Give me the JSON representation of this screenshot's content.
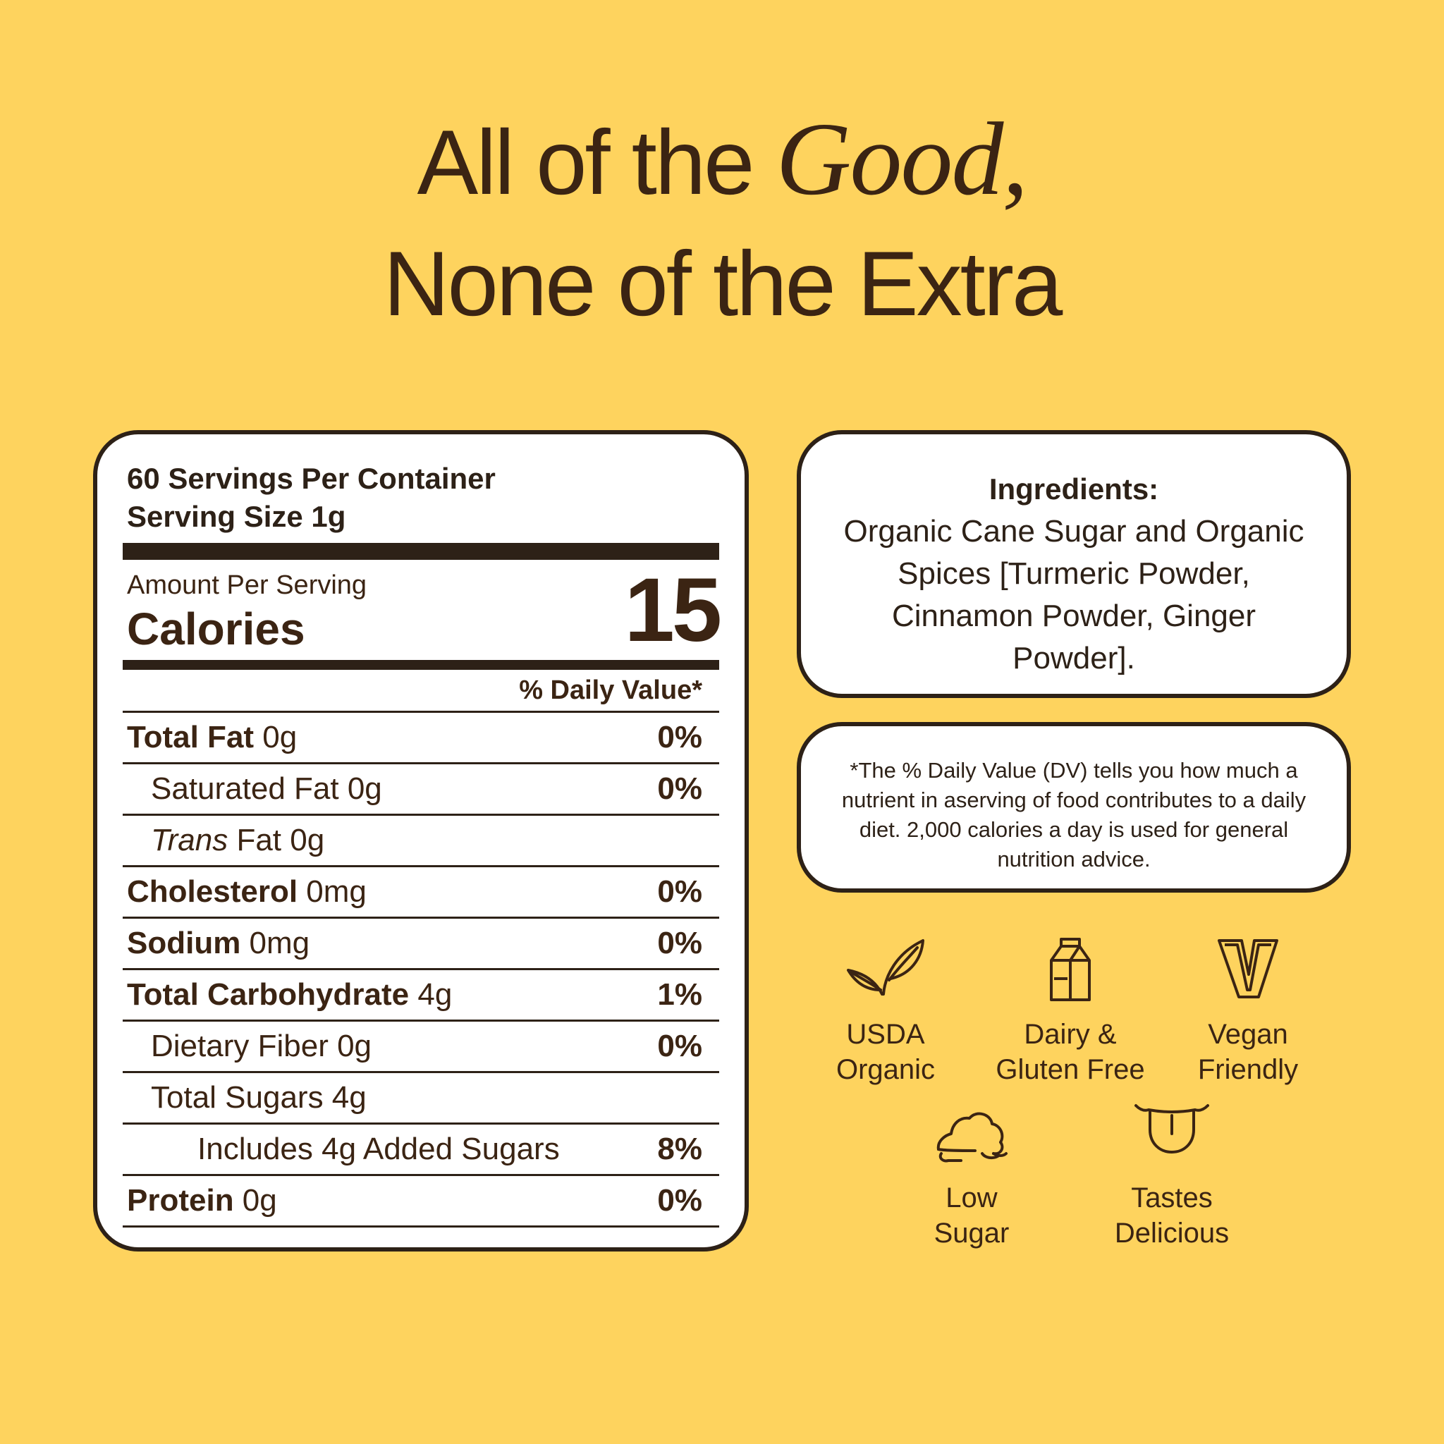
{
  "headline": {
    "line1_before": "All of the ",
    "line1_em": "Good,",
    "line2": "None of the Extra"
  },
  "nutrition": {
    "servings_per_container": "60 Servings Per Container",
    "serving_size": "Serving Size 1g",
    "amount_per_serving": "Amount Per Serving",
    "calories_label": "Calories",
    "calories_value": "15",
    "daily_value_header": "% Daily Value*",
    "rows": [
      {
        "name": "Total Fat",
        "amount": " 0g",
        "pct": "0%"
      },
      {
        "name": "Saturated Fat 0g",
        "pct": "0%"
      },
      {
        "name_italic": "Trans",
        "name": " Fat 0g",
        "pct": ""
      },
      {
        "name": "Cholesterol",
        "amount": " 0mg",
        "pct": "0%"
      },
      {
        "name": "Sodium",
        "amount": " 0mg",
        "pct": "0%"
      },
      {
        "name": "Total Carbohydrate",
        "amount": " 4g",
        "pct": "1%"
      },
      {
        "name": "Dietary Fiber 0g",
        "pct": "0%"
      },
      {
        "name": "Total Sugars 4g",
        "pct": ""
      },
      {
        "name": "Includes 4g Added Sugars",
        "pct": "8%"
      },
      {
        "name": "Protein",
        "amount": " 0g",
        "pct": "0%"
      }
    ]
  },
  "ingredients": {
    "title": "Ingredients:",
    "text": "Organic Cane Sugar and Organic Spices [Turmeric Powder, Cinnamon Powder, Ginger Powder]."
  },
  "dv_note": "*The % Daily Value (DV) tells you how much a nutrient in aserving of food contributes to a daily diet. 2,000 calories a day is used for general nutrition advice.",
  "badges": [
    {
      "icon": "leaf-icon",
      "line1": "USDA",
      "line2": "Organic"
    },
    {
      "icon": "milk-carton-icon",
      "line1": "Dairy &",
      "line2": "Gluten Free"
    },
    {
      "icon": "vegan-v-icon",
      "line1": "Vegan",
      "line2": "Friendly"
    },
    {
      "icon": "sugar-pile-icon",
      "line1": "Low",
      "line2": "Sugar"
    },
    {
      "icon": "tongue-icon",
      "line1": "Tastes",
      "line2": "Delicious"
    }
  ],
  "colors": {
    "background": "#FED35E",
    "text": "#3B2413",
    "panel": "#FFFFFF",
    "outline": "#2D2117"
  }
}
